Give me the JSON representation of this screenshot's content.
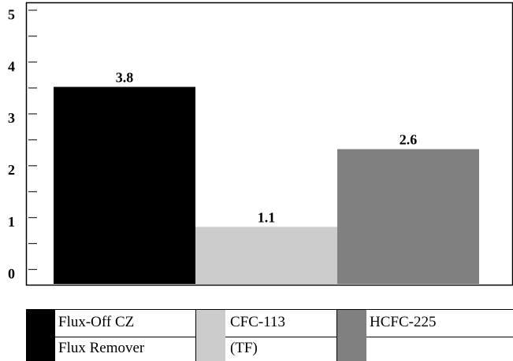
{
  "chart_data": {
    "type": "bar",
    "categories": [
      "Flux-Off CZ Flux Remover",
      "CFC-113 (TF)",
      "HCFC-225"
    ],
    "values": [
      3.8,
      1.1,
      2.6
    ],
    "data_labels": [
      "3.8",
      "1.1",
      "2.6"
    ],
    "yticks": [
      "0",
      "1",
      "2",
      "3",
      "4",
      "5"
    ],
    "ylim": [
      0,
      5.4
    ],
    "title": "",
    "xlabel": "",
    "ylabel": "",
    "colors": [
      "#000000",
      "#cccccc",
      "#808080"
    ],
    "legend": [
      {
        "line1": "Flux-Off CZ",
        "line2": "Flux Remover",
        "color": "#000000"
      },
      {
        "line1": "CFC-113",
        "line2": "(TF)",
        "color": "#cccccc"
      },
      {
        "line1": "HCFC-225",
        "line2": "",
        "color": "#808080"
      }
    ],
    "legend_placement": "bottom",
    "grid": false
  }
}
